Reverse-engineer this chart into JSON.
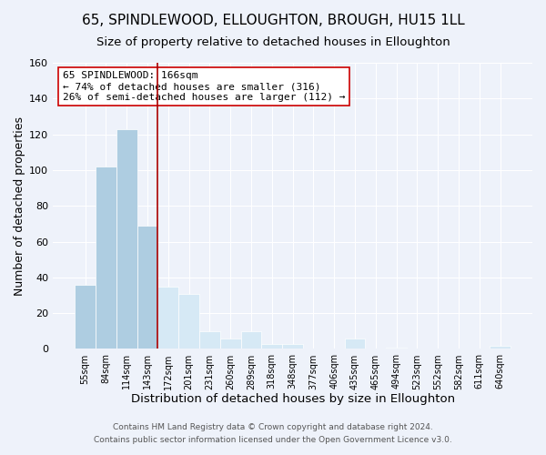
{
  "title": "65, SPINDLEWOOD, ELLOUGHTON, BROUGH, HU15 1LL",
  "subtitle": "Size of property relative to detached houses in Elloughton",
  "xlabel": "Distribution of detached houses by size in Elloughton",
  "ylabel": "Number of detached properties",
  "categories": [
    "55sqm",
    "84sqm",
    "114sqm",
    "143sqm",
    "172sqm",
    "201sqm",
    "231sqm",
    "260sqm",
    "289sqm",
    "318sqm",
    "348sqm",
    "377sqm",
    "406sqm",
    "435sqm",
    "465sqm",
    "494sqm",
    "523sqm",
    "552sqm",
    "582sqm",
    "611sqm",
    "640sqm"
  ],
  "values": [
    36,
    102,
    123,
    69,
    35,
    31,
    10,
    6,
    10,
    3,
    3,
    0,
    0,
    6,
    0,
    1,
    0,
    0,
    0,
    0,
    2
  ],
  "bar_color_left": "#aecde1",
  "bar_color_right": "#d6e9f5",
  "vline_x_idx": 4,
  "vline_color": "#aa0000",
  "annotation_line1": "65 SPINDLEWOOD: 166sqm",
  "annotation_line2": "← 74% of detached houses are smaller (316)",
  "annotation_line3": "26% of semi-detached houses are larger (112) →",
  "annotation_box_edgecolor": "#cc0000",
  "annotation_box_facecolor": "white",
  "ylim": [
    0,
    160
  ],
  "yticks": [
    0,
    20,
    40,
    60,
    80,
    100,
    120,
    140,
    160
  ],
  "footer_line1": "Contains HM Land Registry data © Crown copyright and database right 2024.",
  "footer_line2": "Contains public sector information licensed under the Open Government Licence v3.0.",
  "title_fontsize": 11,
  "subtitle_fontsize": 9.5,
  "xlabel_fontsize": 9.5,
  "ylabel_fontsize": 9,
  "annotation_fontsize": 8,
  "footer_fontsize": 6.5,
  "background_color": "#eef2fa",
  "grid_color": "#ffffff"
}
